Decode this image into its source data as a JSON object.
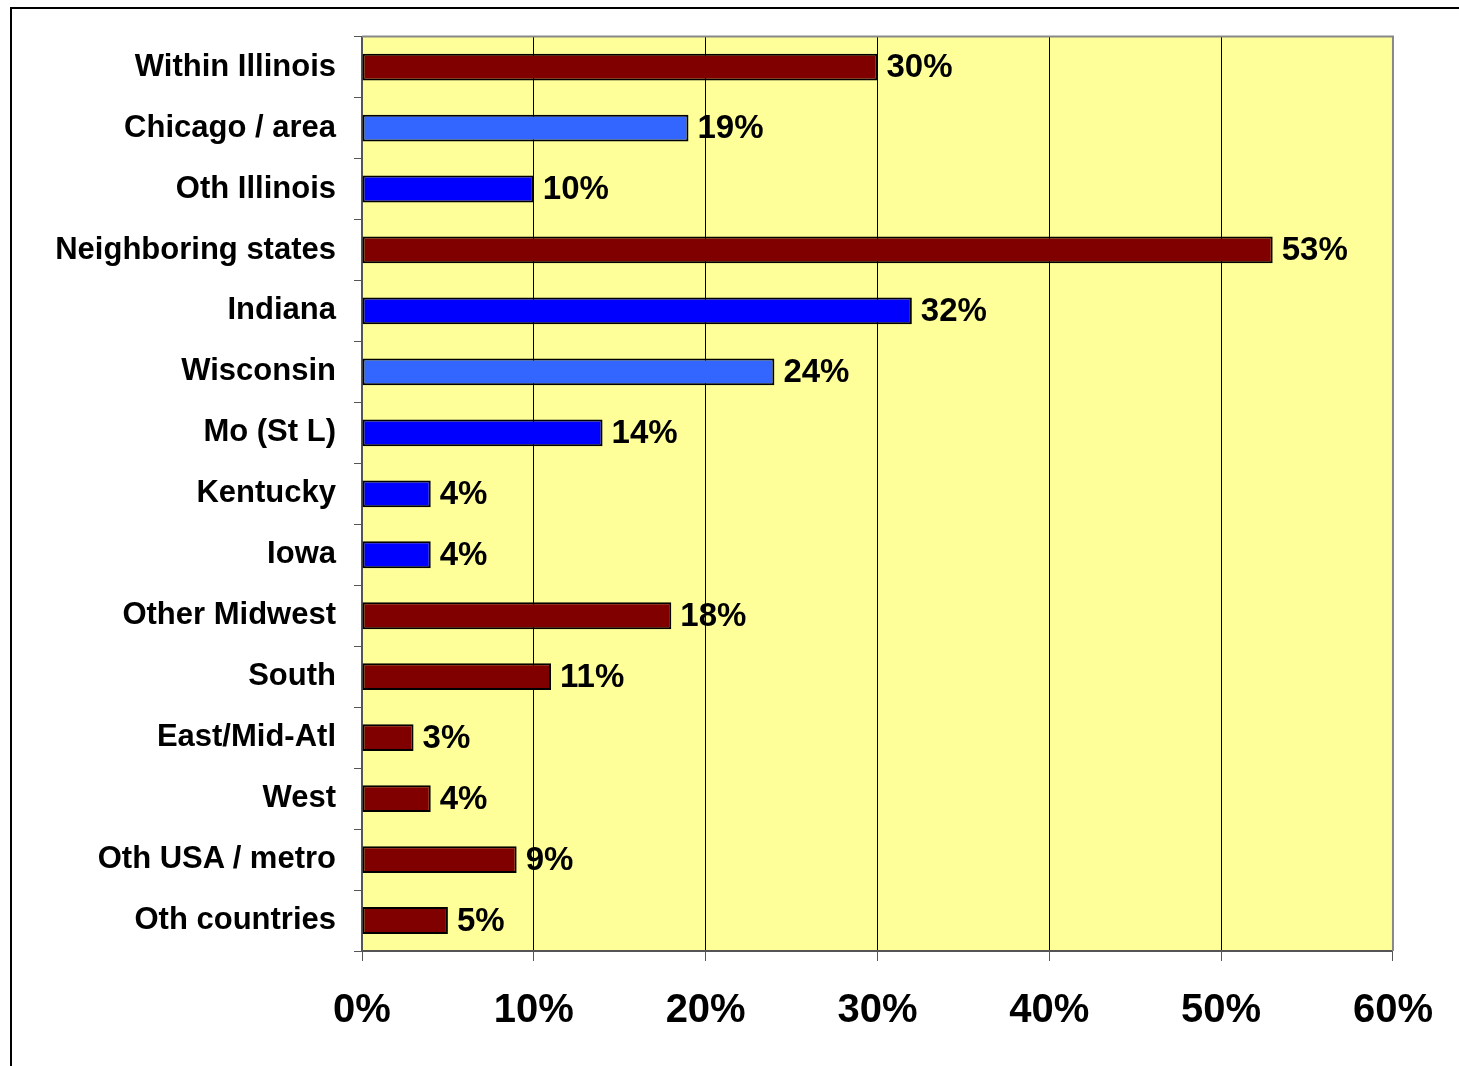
{
  "chart_data": {
    "type": "bar",
    "orientation": "horizontal",
    "categories": [
      "Within Illinois",
      "Chicago / area",
      "Oth Illinois",
      "Neighboring states",
      "Indiana",
      "Wisconsin",
      "Mo (St L)",
      "Kentucky",
      "Iowa",
      "Other Midwest",
      "South",
      "East/Mid-Atl",
      "West",
      "Oth USA / metro",
      "Oth countries"
    ],
    "values": [
      30,
      19,
      10,
      53,
      32,
      24,
      14,
      4,
      4,
      18,
      11,
      3,
      4,
      9,
      5
    ],
    "colors": [
      "#800000",
      "#3366ff",
      "#0000ff",
      "#800000",
      "#0000ff",
      "#3366ff",
      "#0000ff",
      "#0000ff",
      "#0000ff",
      "#800000",
      "#800000",
      "#800000",
      "#800000",
      "#800000",
      "#800000"
    ],
    "value_labels": [
      "30%",
      "19%",
      "10%",
      "53%",
      "32%",
      "24%",
      "14%",
      "4%",
      "4%",
      "18%",
      "11%",
      "3%",
      "4%",
      "9%",
      "5%"
    ],
    "xlim": [
      0,
      60
    ],
    "xticks": [
      {
        "value": 0,
        "label": "0%"
      },
      {
        "value": 10,
        "label": "10%"
      },
      {
        "value": 20,
        "label": "20%"
      },
      {
        "value": 30,
        "label": "30%"
      },
      {
        "value": 40,
        "label": "40%"
      },
      {
        "value": 50,
        "label": "50%"
      },
      {
        "value": 60,
        "label": "60%"
      }
    ],
    "grid": "x"
  }
}
